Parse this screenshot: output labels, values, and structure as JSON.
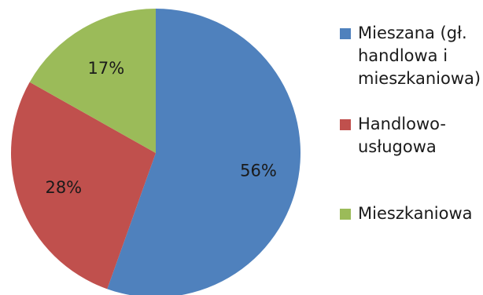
{
  "chart_data": {
    "type": "pie",
    "title": "",
    "slices": [
      {
        "label": "Mieszana (gł.\nhandlowa i\nmieszkaniowa)",
        "value": 56,
        "value_label": "56%",
        "color": "#4F81BD"
      },
      {
        "label": "Handlowo-\nusługowa",
        "value": 28,
        "value_label": "28%",
        "color": "#C0504D"
      },
      {
        "label": "Mieszkaniowa",
        "value": 17,
        "value_label": "17%",
        "color": "#9BBB59"
      }
    ],
    "start_angle_deg": 0,
    "direction": "clockwise",
    "legend_position": "right"
  }
}
